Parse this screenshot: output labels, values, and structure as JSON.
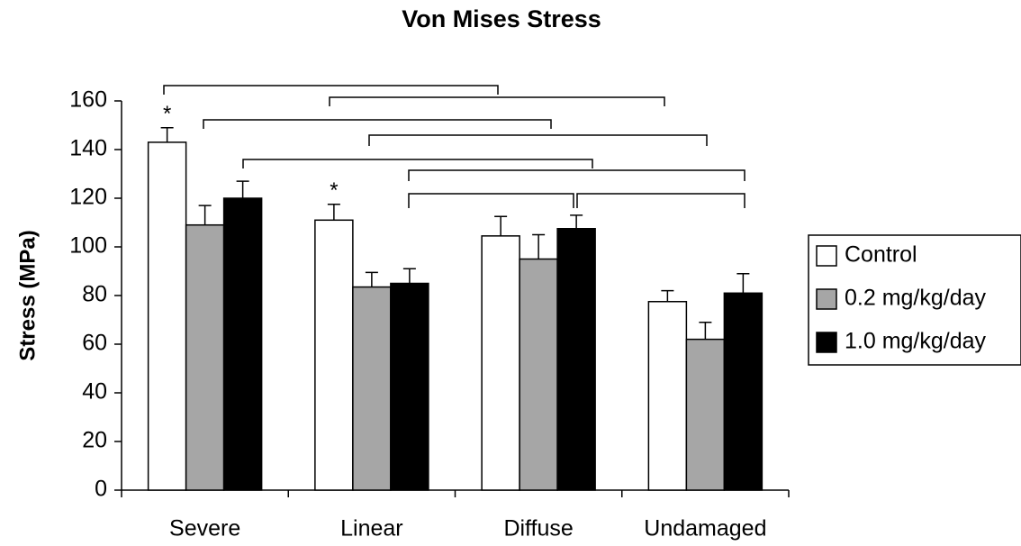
{
  "chart_data": {
    "type": "bar",
    "title": "Von Mises Stress",
    "y_label": "Stress (MPa)",
    "categories": [
      "Severe",
      "Linear",
      "Diffuse",
      "Undamaged"
    ],
    "series": [
      {
        "name": "Control",
        "color": "#ffffff",
        "values": [
          143,
          111,
          104.5,
          77.5
        ],
        "errors": [
          6,
          6.5,
          8,
          4.5
        ],
        "markers": [
          "*",
          "*",
          null,
          null
        ]
      },
      {
        "name": "0.2 mg/kg/day",
        "color": "#a6a6a6",
        "values": [
          109,
          83.5,
          95,
          62
        ],
        "errors": [
          8,
          6,
          10,
          7
        ]
      },
      {
        "name": "1.0 mg/kg/day",
        "color": "#000000",
        "values": [
          120,
          85,
          107.5,
          81
        ],
        "errors": [
          7,
          6,
          5.5,
          8
        ]
      }
    ],
    "ylim": [
      0,
      160
    ],
    "yticks": [
      0,
      20,
      40,
      60,
      80,
      100,
      120,
      140,
      160
    ],
    "grid": false,
    "legend": "right"
  }
}
